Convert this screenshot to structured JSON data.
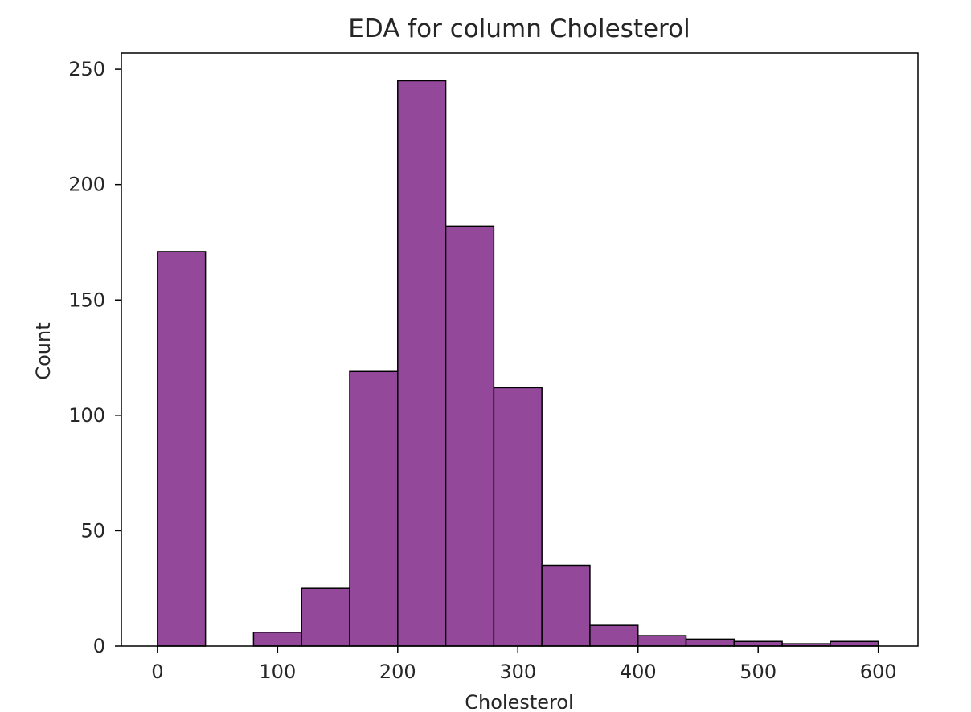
{
  "chart_data": {
    "type": "bar",
    "title": "EDA for column Cholesterol",
    "xlabel": "Cholesterol",
    "ylabel": "Count",
    "bin_edges": [
      0,
      40,
      80,
      120,
      160,
      200,
      240,
      280,
      320,
      360,
      400,
      440,
      480,
      520,
      560,
      600
    ],
    "values": [
      171,
      0,
      6,
      25,
      119,
      245,
      182,
      112,
      35,
      9,
      4.5,
      3,
      2,
      1,
      2
    ],
    "xlim": [
      -30,
      633
    ],
    "ylim": [
      0,
      257
    ],
    "x_ticks": [
      0,
      100,
      200,
      300,
      400,
      500,
      600
    ],
    "y_ticks": [
      0,
      50,
      100,
      150,
      200,
      250
    ],
    "grid": false,
    "legend": "none",
    "colors": {
      "bar_fill": "#93489a",
      "bar_edge": "#000000",
      "frame": "#000000"
    }
  }
}
